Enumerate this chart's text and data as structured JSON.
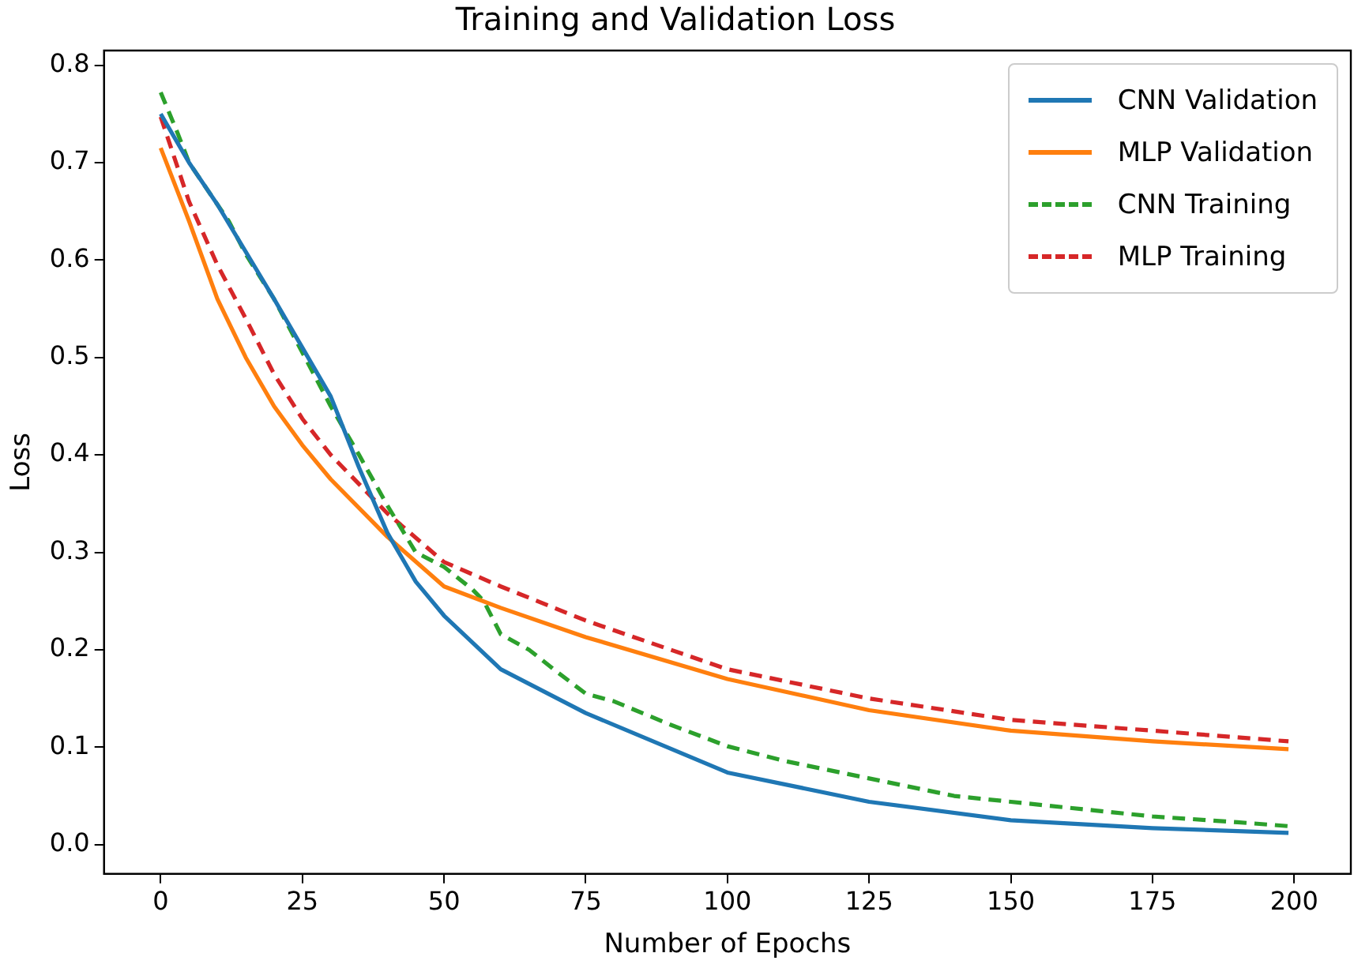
{
  "chart_data": {
    "type": "line",
    "title": "Training and Validation Loss",
    "xlabel": "Number of Epochs",
    "ylabel": "Loss",
    "xlim": [
      -10,
      210
    ],
    "xticks": [
      0,
      25,
      50,
      75,
      100,
      125,
      150,
      175,
      200
    ],
    "ylim": [
      -0.03,
      0.815
    ],
    "yticks": [
      {
        "value": 0,
        "label": "0.0"
      },
      {
        "value": 0.1,
        "label": "0.1"
      },
      {
        "value": 0.2,
        "label": "0.2"
      },
      {
        "value": 0.3,
        "label": "0.3"
      },
      {
        "value": 0.4,
        "label": "0.4"
      },
      {
        "value": 0.5,
        "label": "0.5"
      },
      {
        "value": 0.6,
        "label": "0.6"
      },
      {
        "value": 0.7,
        "label": "0.7"
      },
      {
        "value": 0.8,
        "label": "0.8"
      }
    ],
    "grid": false,
    "legend": "top right",
    "marker": "none",
    "series": [
      {
        "name": "CNN Validation",
        "color": "#1f77b4",
        "line_style": "solid",
        "x": [
          0,
          5,
          10,
          20,
          25,
          30,
          35,
          40,
          45,
          50,
          60,
          75,
          100,
          125,
          150,
          175,
          199
        ],
        "values": [
          0.75,
          0.7,
          0.657,
          0.56,
          0.51,
          0.46,
          0.387,
          0.32,
          0.27,
          0.235,
          0.18,
          0.135,
          0.074,
          0.044,
          0.025,
          0.017,
          0.012
        ]
      },
      {
        "name": "MLP Validation",
        "color": "#ff7f0e",
        "line_style": "solid",
        "x": [
          0,
          5,
          10,
          15,
          20,
          25,
          30,
          40,
          50,
          60,
          75,
          100,
          125,
          150,
          175,
          199
        ],
        "values": [
          0.715,
          0.64,
          0.56,
          0.5,
          0.45,
          0.41,
          0.375,
          0.316,
          0.265,
          0.243,
          0.213,
          0.17,
          0.138,
          0.117,
          0.106,
          0.098
        ]
      },
      {
        "name": "CNN Training",
        "color": "#2ca02c",
        "line_style": "dashed",
        "x": [
          0,
          3,
          5,
          10,
          12,
          15,
          20,
          25,
          30,
          35,
          40,
          45,
          50,
          55,
          57,
          60,
          65,
          70,
          75,
          80,
          90,
          100,
          110,
          125,
          140,
          150,
          165,
          175,
          190,
          199
        ],
        "values": [
          0.772,
          0.73,
          0.7,
          0.657,
          0.64,
          0.606,
          0.56,
          0.505,
          0.45,
          0.4,
          0.348,
          0.3,
          0.285,
          0.262,
          0.25,
          0.216,
          0.2,
          0.177,
          0.155,
          0.147,
          0.123,
          0.101,
          0.086,
          0.068,
          0.05,
          0.044,
          0.035,
          0.029,
          0.023,
          0.019
        ]
      },
      {
        "name": "MLP Training",
        "color": "#d62728",
        "line_style": "dashed",
        "x": [
          0,
          5,
          10,
          15,
          20,
          25,
          30,
          40,
          50,
          60,
          75,
          100,
          125,
          150,
          175,
          199
        ],
        "values": [
          0.747,
          0.66,
          0.595,
          0.54,
          0.483,
          0.437,
          0.4,
          0.34,
          0.29,
          0.265,
          0.23,
          0.18,
          0.15,
          0.128,
          0.117,
          0.106
        ]
      }
    ]
  }
}
